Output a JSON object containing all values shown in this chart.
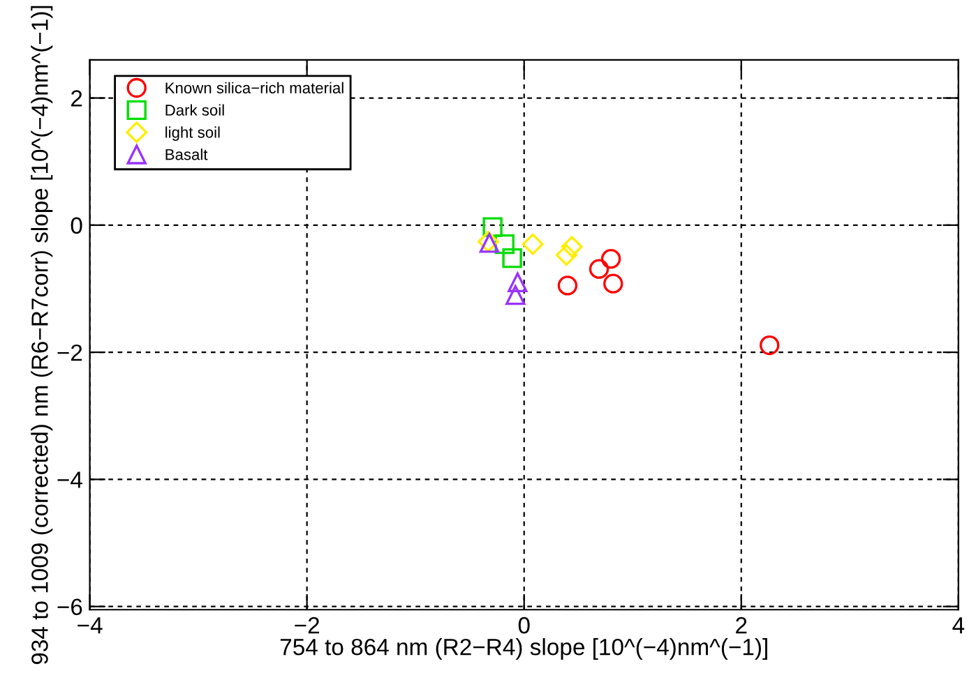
{
  "chart_data": {
    "type": "scatter",
    "xlabel": "754 to 864 nm (R2−R4) slope [10^(−4)nm^(−1)]",
    "ylabel": "934 to 1009 (corrected) nm (R6−R7corr) slope [10^(−4)nm^(−1)]",
    "xlim": [
      -4,
      4
    ],
    "xticks": [
      {
        "value": -4,
        "label": "−4"
      },
      {
        "value": -2,
        "label": "−2"
      },
      0,
      2,
      4
    ],
    "ylim": [
      -6.05,
      2.6
    ],
    "yticks": [
      {
        "value": -6,
        "label": "−6"
      },
      {
        "value": -4,
        "label": "−4"
      },
      {
        "value": -2,
        "label": "−2"
      },
      0,
      2
    ],
    "grid": true,
    "legend": "top left",
    "series": [
      {
        "name": "Known silica−rich material",
        "color": "#ff0000",
        "marker": "circle",
        "x": [
          0.4,
          0.69,
          0.8,
          0.82,
          2.26
        ],
        "values": [
          -0.95,
          -0.69,
          -0.53,
          -0.92,
          -1.89
        ]
      },
      {
        "name": "Dark soil",
        "color": "#00dd00",
        "marker": "square",
        "x": [
          -0.29,
          -0.18,
          -0.11
        ],
        "values": [
          -0.03,
          -0.3,
          -0.52
        ]
      },
      {
        "name": "light soil",
        "color": "#ffee00",
        "marker": "diamond",
        "x": [
          -0.33,
          0.08,
          0.44,
          0.39
        ],
        "values": [
          -0.26,
          -0.3,
          -0.34,
          -0.47
        ]
      },
      {
        "name": "Basalt",
        "color": "#9933ff",
        "marker": "triangle",
        "x": [
          -0.32,
          -0.06,
          -0.08
        ],
        "values": [
          -0.28,
          -0.9,
          -1.1
        ]
      }
    ]
  }
}
